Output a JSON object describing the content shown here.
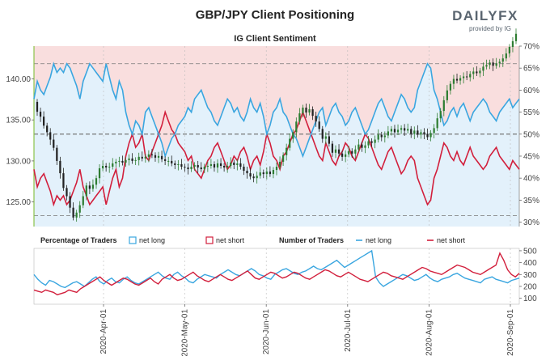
{
  "header": {
    "title": "GBP/JPY Client Positioning",
    "brand_main": "DAILYFX",
    "brand_sub": "provided by IG"
  },
  "colors": {
    "net_long": "#3aa6e0",
    "net_short": "#d21f3c",
    "zone_red": "#f9dede",
    "zone_blue": "#e3f1fb",
    "candle_up": "#2e7d32",
    "candle_down": "#222222",
    "brand_red": "#e2231a",
    "brand_grey": "#5a6570",
    "axis_green": "#8bc34a"
  },
  "chart_data": [
    {
      "type": "line",
      "title": "IG Client Sentiment",
      "left_axis": {
        "ticks": [
          "140.00",
          "135.00",
          "130.00",
          "125.00"
        ],
        "ylim": [
          122,
          144
        ]
      },
      "right_axis": {
        "ticks": [
          "70%",
          "65%",
          "60%",
          "55%",
          "50%",
          "45%",
          "40%",
          "35%",
          "30%"
        ],
        "ylim": [
          29,
          70
        ]
      },
      "reference_lines": [
        66,
        50,
        31.5
      ],
      "price_series": {
        "name": "GBP/JPY",
        "start_close": 137.2,
        "steps": [
          -1.2,
          -0.6,
          -1.1,
          -0.8,
          -0.9,
          -1.0,
          -1.6,
          -1.5,
          -1.8,
          -1.0,
          -1.4,
          -1.2,
          0.6,
          0.9,
          1.1,
          1.3,
          -0.4,
          0.5,
          0.8,
          1.2,
          0.3,
          -0.2,
          0.1,
          0.4,
          0.2,
          0.1,
          -0.2,
          0.3,
          0.2,
          -0.3,
          0.1,
          0.4,
          -0.2,
          0.2,
          0.3,
          -0.1,
          -0.3,
          0.2,
          -0.4,
          -0.2,
          0.0,
          -0.3,
          -0.2,
          0.1,
          -0.3,
          -0.1,
          -0.2,
          0.3,
          0.2,
          -0.3,
          -0.2,
          0.3,
          0.1,
          0.2,
          -0.4,
          0.5,
          -0.3,
          -0.2,
          0.2,
          0.4,
          -0.3,
          0.2,
          -0.4,
          -0.5,
          -0.3,
          -0.4,
          -0.2,
          0.3,
          0.4,
          -0.2,
          0.3,
          -0.3,
          0.5,
          0.4,
          0.6,
          0.8,
          0.9,
          1.1,
          0.8,
          1.3,
          1.0,
          0.7,
          -0.6,
          0.4,
          -0.8,
          -0.7,
          -0.9,
          -1.2,
          0.3,
          -0.9,
          -1.1,
          0.4,
          -0.5,
          -0.4,
          0.3,
          0.4,
          -0.3,
          0.5,
          0.6,
          -0.4,
          0.3,
          0.5,
          -0.2,
          0.4,
          0.6,
          -0.3,
          0.2,
          0.5,
          0.3,
          -0.4,
          0.3,
          0.2,
          -0.3,
          0.2,
          -0.6,
          0.4,
          -0.5,
          0.3,
          -0.2,
          -0.4,
          0.5,
          0.6,
          1.2,
          0.9,
          1.3,
          1.2,
          0.8,
          0.6,
          -0.2,
          0.3,
          0.2,
          -0.1,
          0.4,
          0.3,
          -0.2,
          0.3,
          0.5,
          0.2,
          0.3,
          -0.4,
          0.3,
          0.2,
          0.4,
          0.6,
          0.8,
          0.7,
          0.9
        ]
      },
      "series": [
        {
          "name": "net long",
          "values": [
            58,
            62,
            60,
            59,
            61,
            63,
            66,
            64,
            65,
            64,
            66,
            65,
            63,
            61,
            58,
            62,
            64,
            66,
            65,
            64,
            63,
            62,
            66,
            63,
            60,
            58,
            62,
            60,
            55,
            52,
            50,
            53,
            52,
            50,
            55,
            56,
            54,
            52,
            50,
            48,
            45,
            47,
            49,
            50,
            52,
            53,
            54,
            56,
            55,
            58,
            59,
            60,
            58,
            56,
            55,
            53,
            52,
            54,
            56,
            58,
            57,
            55,
            56,
            54,
            53,
            55,
            58,
            56,
            55,
            57,
            54,
            50,
            52,
            55,
            56,
            58,
            55,
            54,
            52,
            50,
            49,
            47,
            45,
            47,
            49,
            51,
            53,
            55,
            56,
            52,
            54,
            56,
            57,
            55,
            54,
            52,
            53,
            55,
            56,
            54,
            52,
            50,
            51,
            53,
            55,
            57,
            58,
            56,
            54,
            53,
            55,
            57,
            59,
            58,
            56,
            55,
            56,
            60,
            62,
            64,
            66,
            65,
            60,
            58,
            55,
            52,
            53,
            55,
            56,
            54,
            56,
            57,
            55,
            53,
            55,
            56,
            57,
            58,
            57,
            55,
            54,
            53,
            55,
            56,
            57,
            58,
            56,
            57,
            58
          ]
        }
      ]
    },
    {
      "type": "line",
      "legend": [
        {
          "label": "Percentage of Traders",
          "bold": true
        },
        {
          "label": "net long",
          "kind": "box"
        },
        {
          "label": "net short",
          "kind": "box"
        },
        {
          "label": "Number of Traders",
          "bold": true
        },
        {
          "label": "net long",
          "kind": "line"
        },
        {
          "label": "net short",
          "kind": "line"
        }
      ],
      "right_axis": {
        "ticks": [
          "500",
          "400",
          "300",
          "200",
          "100"
        ],
        "ylim": [
          50,
          520
        ]
      },
      "x_ticks": [
        "2020-Apr-01",
        "2020-May-01",
        "2020-Jun-01",
        "2020-Jul-01",
        "2020-Aug-01",
        "2020-Sep-01"
      ],
      "series": [
        {
          "name": "net long",
          "values": [
            300,
            260,
            230,
            210,
            250,
            240,
            220,
            200,
            190,
            210,
            230,
            240,
            220,
            200,
            230,
            260,
            280,
            240,
            220,
            250,
            270,
            240,
            230,
            260,
            280,
            250,
            230,
            220,
            240,
            260,
            280,
            300,
            320,
            290,
            270,
            260,
            300,
            320,
            290,
            270,
            240,
            230,
            260,
            280,
            300,
            290,
            280,
            270,
            300,
            320,
            340,
            320,
            300,
            290,
            310,
            330,
            350,
            330,
            300,
            290,
            270,
            260,
            300,
            320,
            340,
            350,
            330,
            310,
            300,
            320,
            330,
            350,
            370,
            350,
            340,
            360,
            380,
            400,
            420,
            390,
            360,
            380,
            400,
            420,
            440,
            460,
            480,
            500,
            280,
            230,
            200,
            220,
            240,
            260,
            280,
            300,
            290,
            270,
            250,
            260,
            280,
            300,
            270,
            250,
            240,
            260,
            270,
            280,
            300,
            310,
            290,
            270,
            260,
            250,
            240,
            230,
            260,
            270,
            280,
            260,
            250,
            240,
            230,
            250,
            260,
            270
          ]
        },
        {
          "name": "net short",
          "values": [
            170,
            160,
            150,
            170,
            160,
            150,
            130,
            140,
            150,
            170,
            160,
            150,
            180,
            200,
            220,
            240,
            260,
            280,
            250,
            230,
            210,
            230,
            250,
            270,
            260,
            240,
            220,
            210,
            230,
            250,
            270,
            240,
            220,
            260,
            280,
            300,
            270,
            250,
            260,
            280,
            300,
            320,
            290,
            270,
            250,
            240,
            260,
            280,
            300,
            280,
            260,
            250,
            270,
            290,
            310,
            330,
            300,
            270,
            260,
            280,
            300,
            320,
            310,
            290,
            270,
            280,
            300,
            320,
            310,
            290,
            270,
            260,
            280,
            300,
            320,
            340,
            330,
            310,
            290,
            280,
            300,
            320,
            300,
            280,
            260,
            250,
            240,
            260,
            280,
            300,
            320,
            310,
            290,
            280,
            270,
            260,
            280,
            300,
            320,
            340,
            360,
            350,
            330,
            320,
            310,
            300,
            320,
            340,
            360,
            380,
            370,
            360,
            340,
            320,
            310,
            300,
            320,
            340,
            360,
            380,
            480,
            420,
            340,
            300,
            280,
            310
          ]
        }
      ]
    }
  ]
}
